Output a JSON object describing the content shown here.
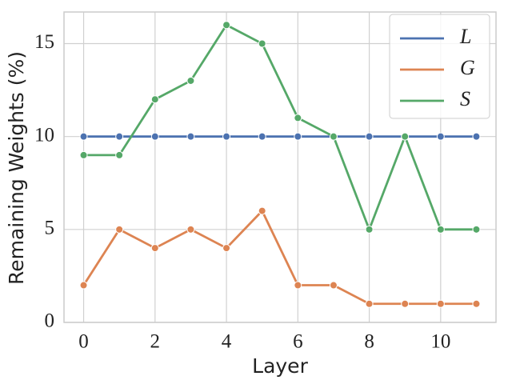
{
  "chart_data": {
    "type": "line",
    "x_label": "Layer",
    "y_label": "Remaining Weights (%)",
    "x": [
      0,
      1,
      2,
      3,
      4,
      5,
      6,
      7,
      8,
      9,
      10,
      11
    ],
    "series": [
      {
        "name": "L",
        "color": "#4c72b0",
        "values": [
          10,
          10,
          10,
          10,
          10,
          10,
          10,
          10,
          10,
          10,
          10,
          10
        ]
      },
      {
        "name": "G",
        "color": "#dd8452",
        "values": [
          2,
          5,
          4,
          5,
          4,
          6,
          2,
          2,
          1,
          1,
          1,
          1
        ]
      },
      {
        "name": "S",
        "color": "#55a868",
        "values": [
          9,
          9,
          12,
          13,
          16,
          15,
          11,
          10,
          5,
          10,
          5,
          5
        ]
      }
    ],
    "xlim": [
      -0.55,
      11.55
    ],
    "ylim": [
      0,
      16.7
    ],
    "xticks": [
      0,
      2,
      4,
      6,
      8,
      10
    ],
    "yticks": [
      0,
      5,
      10,
      15
    ],
    "grid": true,
    "legend": "upper right"
  }
}
